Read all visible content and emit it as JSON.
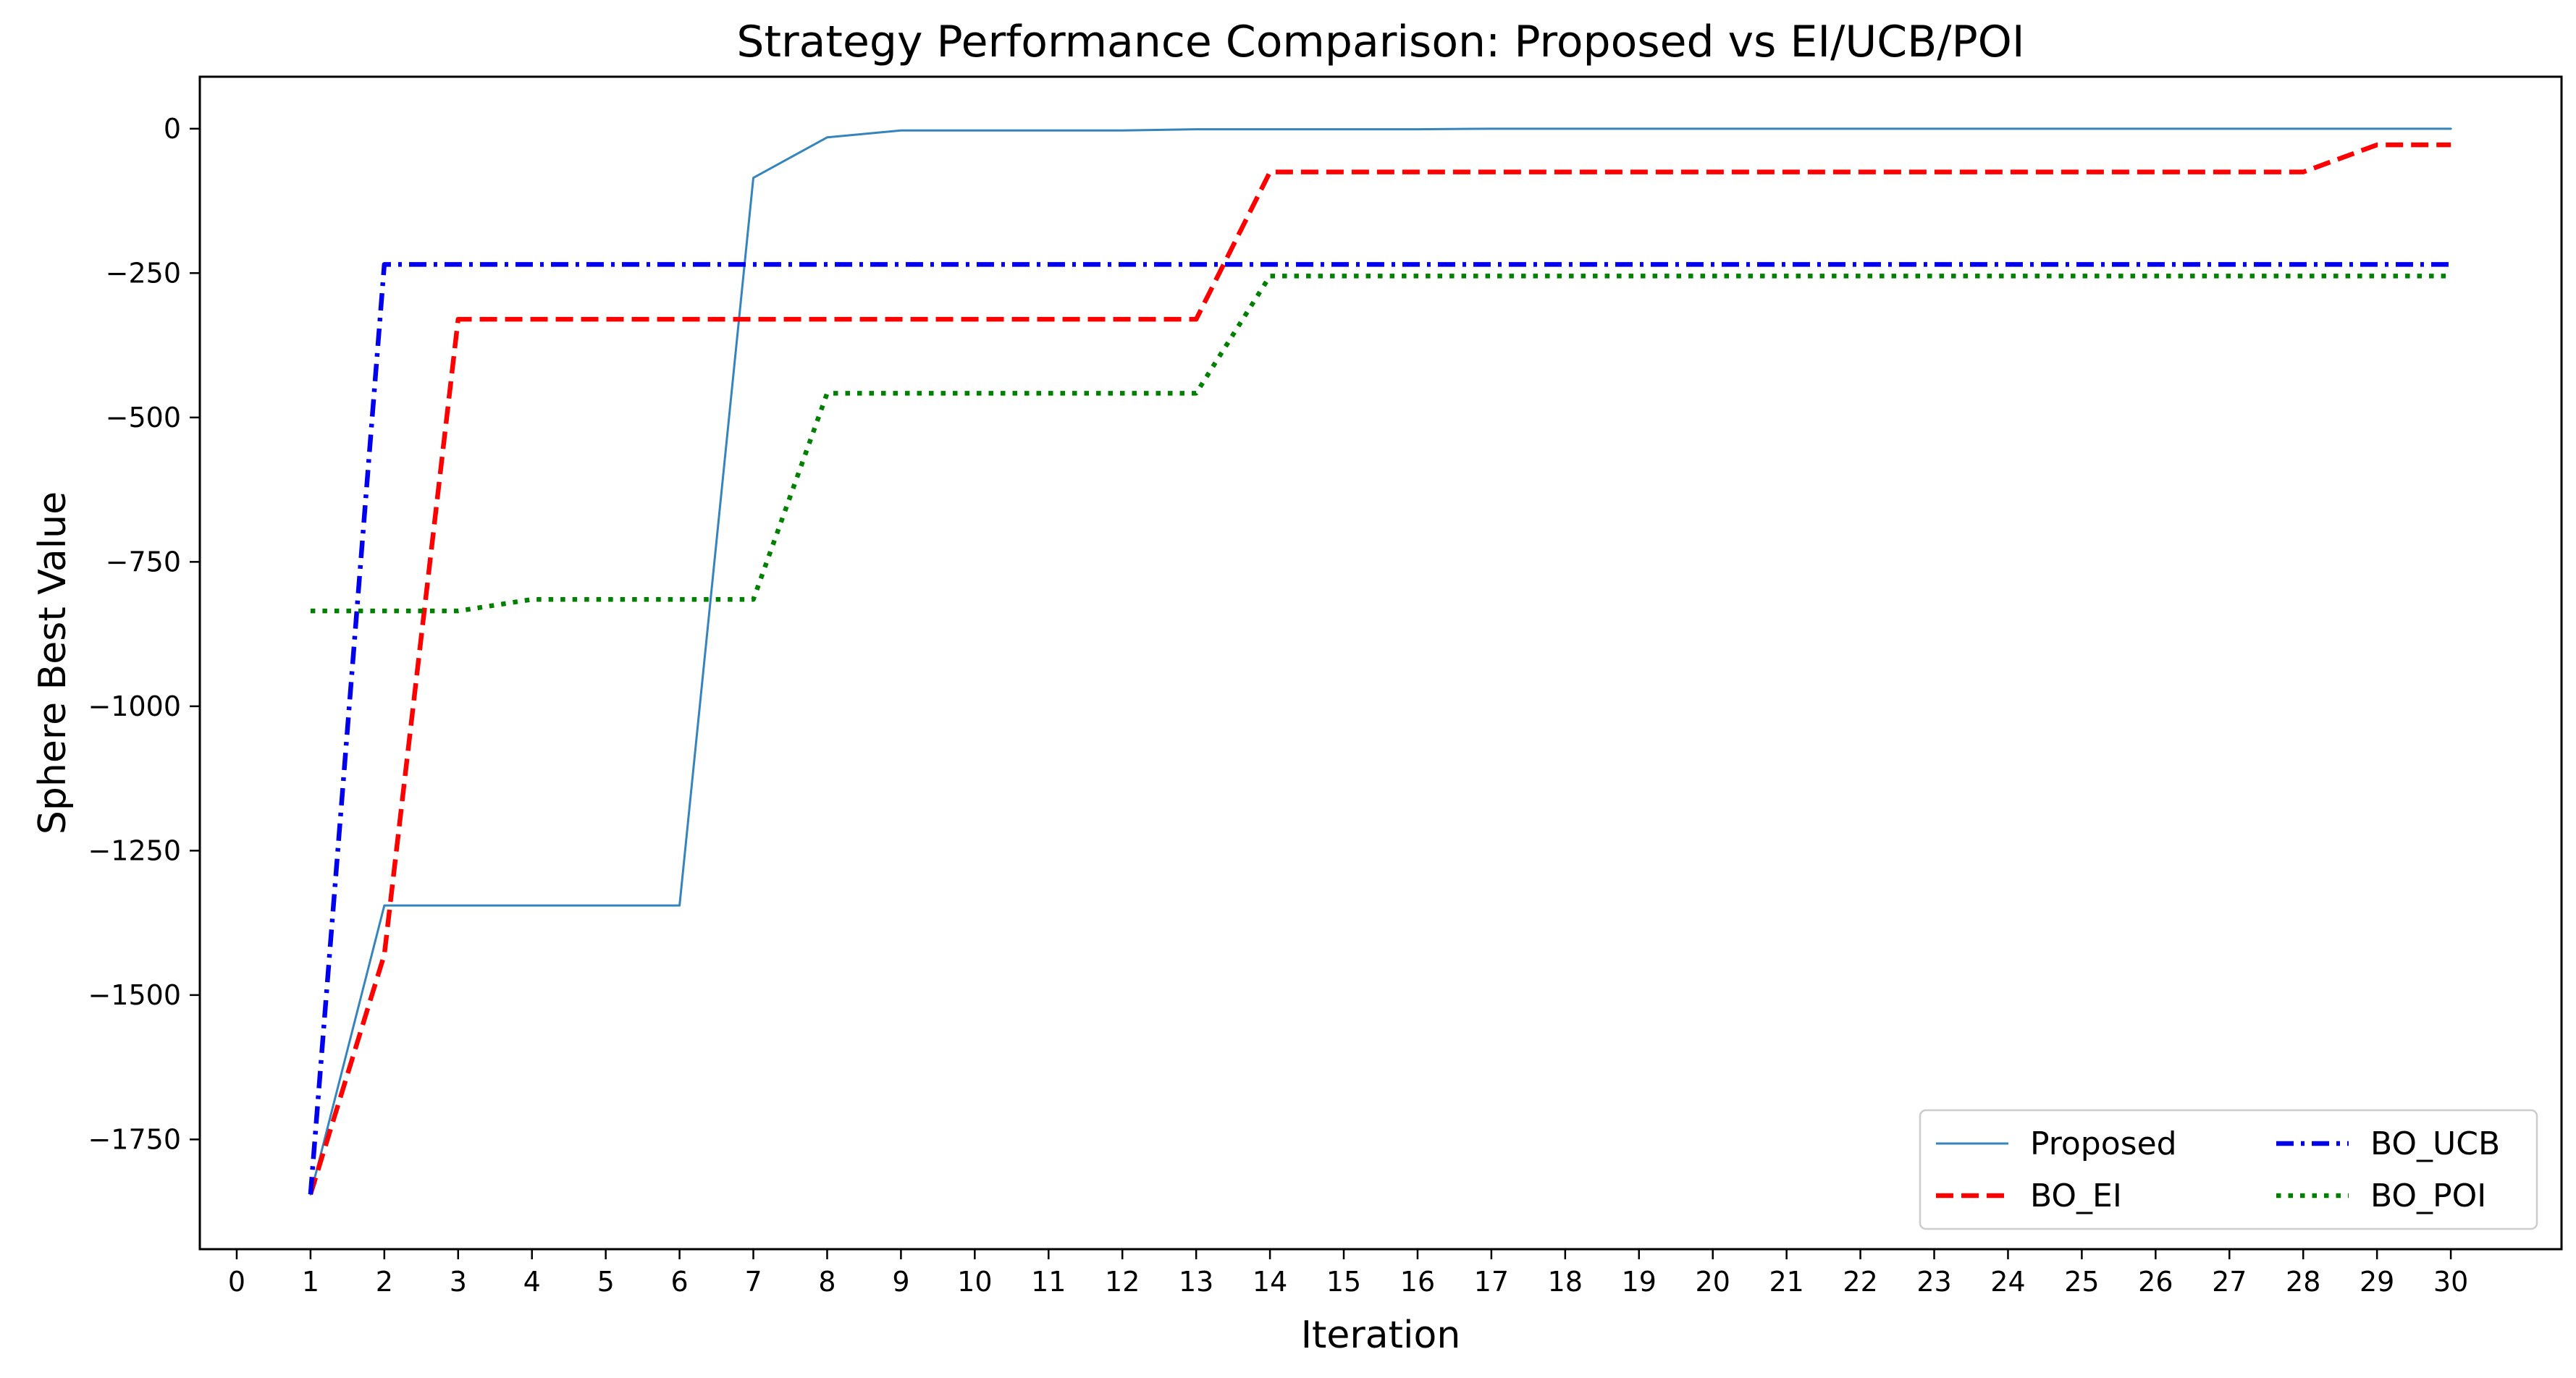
{
  "chart_data": {
    "type": "line",
    "title": "Strategy Performance Comparison: Proposed vs EI/UCB/POI",
    "xlabel": "Iteration",
    "ylabel": "Sphere Best Value",
    "xlim": [
      -0.5,
      31.5
    ],
    "ylim": [
      -1940,
      90
    ],
    "xticks": [
      0,
      1,
      2,
      3,
      4,
      5,
      6,
      7,
      8,
      9,
      10,
      11,
      12,
      13,
      14,
      15,
      16,
      17,
      18,
      19,
      20,
      21,
      22,
      23,
      24,
      25,
      26,
      27,
      28,
      29,
      30
    ],
    "yticks": [
      0,
      -250,
      -500,
      -750,
      -1000,
      -1250,
      -1500,
      -1750
    ],
    "ytick_labels": [
      "0",
      "−250",
      "−500",
      "−750",
      "−1000",
      "−1250",
      "−1500",
      "−1750"
    ],
    "grid": false,
    "legend_position": "lower-right",
    "x": [
      1,
      2,
      3,
      4,
      5,
      6,
      7,
      8,
      9,
      10,
      11,
      12,
      13,
      14,
      15,
      16,
      17,
      18,
      19,
      20,
      21,
      22,
      23,
      24,
      25,
      26,
      27,
      28,
      29,
      30
    ],
    "series": [
      {
        "name": "Proposed",
        "color": "#1f77b4",
        "style": "solid",
        "values": [
          -1845,
          -1345,
          -1345,
          -1345,
          -1345,
          -1345,
          -85,
          -15,
          -3,
          -3,
          -3,
          -3,
          -1,
          -1,
          -1,
          -1,
          0,
          0,
          0,
          0,
          0,
          0,
          0,
          0,
          0,
          0,
          0,
          0,
          0,
          0
        ]
      },
      {
        "name": "BO_EI",
        "color": "#ff0000",
        "style": "dashed",
        "values": [
          -1845,
          -1430,
          -330,
          -330,
          -330,
          -330,
          -330,
          -330,
          -330,
          -330,
          -330,
          -330,
          -330,
          -75,
          -75,
          -75,
          -75,
          -75,
          -75,
          -75,
          -75,
          -75,
          -75,
          -75,
          -75,
          -75,
          -75,
          -75,
          -28,
          -28
        ]
      },
      {
        "name": "BO_UCB",
        "color": "#0000ee",
        "style": "dashdot",
        "values": [
          -1845,
          -235,
          -235,
          -235,
          -235,
          -235,
          -235,
          -235,
          -235,
          -235,
          -235,
          -235,
          -235,
          -235,
          -235,
          -235,
          -235,
          -235,
          -235,
          -235,
          -235,
          -235,
          -235,
          -235,
          -235,
          -235,
          -235,
          -235,
          -235,
          -235
        ]
      },
      {
        "name": "BO_POI",
        "color": "#008000",
        "style": "dotted",
        "values": [
          -835,
          -835,
          -835,
          -815,
          -815,
          -815,
          -815,
          -458,
          -458,
          -458,
          -458,
          -458,
          -458,
          -255,
          -255,
          -255,
          -255,
          -255,
          -255,
          -255,
          -255,
          -255,
          -255,
          -255,
          -255,
          -255,
          -255,
          -255,
          -255,
          -255
        ]
      }
    ]
  }
}
